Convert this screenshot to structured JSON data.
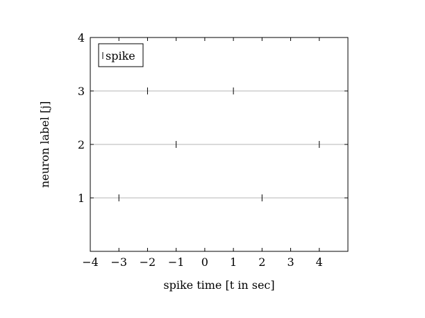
{
  "chart_data": {
    "type": "scatter",
    "title": "",
    "xlabel": "spike time [t in sec]",
    "ylabel": "neuron label [j]",
    "xlim": [
      -4,
      5
    ],
    "ylim": [
      0,
      4
    ],
    "xticks": [
      -4,
      -3,
      -2,
      -1,
      0,
      1,
      2,
      3,
      4
    ],
    "yticks": [
      1,
      2,
      3,
      4
    ],
    "xtick_labels": [
      "−4",
      "−3",
      "−2",
      "−1",
      "0",
      "1",
      "2",
      "3",
      "4"
    ],
    "ytick_labels": [
      "1",
      "2",
      "3",
      "4"
    ],
    "grid": {
      "y": true,
      "x": false
    },
    "legend": {
      "entries": [
        "spike"
      ],
      "placement": "top-left"
    },
    "marker": "vertical-bar",
    "series": [
      {
        "name": "spike",
        "points": [
          {
            "x": -3,
            "y": 1
          },
          {
            "x": 2,
            "y": 1
          },
          {
            "x": -1,
            "y": 2
          },
          {
            "x": 4,
            "y": 2
          },
          {
            "x": -2,
            "y": 3
          },
          {
            "x": 1,
            "y": 3
          }
        ]
      }
    ],
    "colors": {
      "grid": "#b5b5b5",
      "marker": "#000000",
      "frame": "#000000"
    }
  }
}
